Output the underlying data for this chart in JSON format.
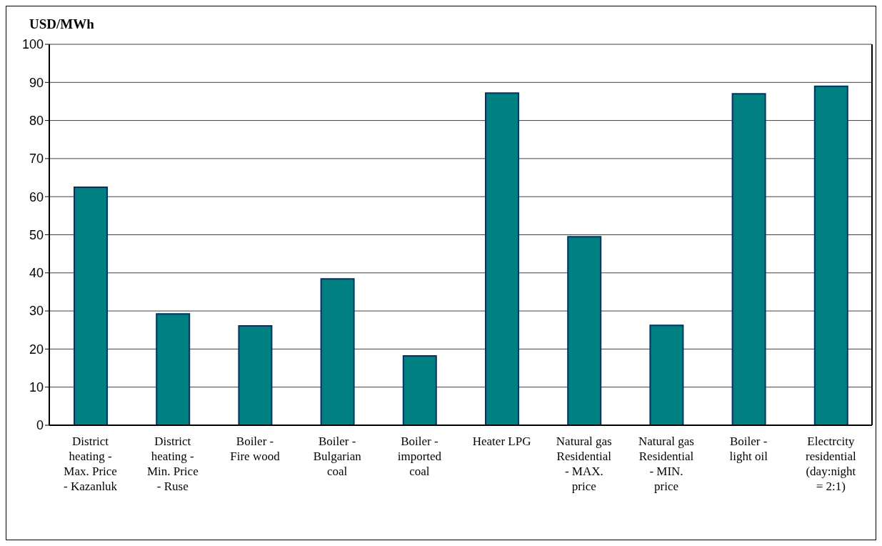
{
  "chart_data": {
    "type": "bar",
    "ylabel": "USD/MWh",
    "categories": [
      "District heating - Max. Price - Kazanluk",
      "District heating - Min. Price - Ruse",
      "Boiler - Fire wood",
      "Boiler - Bulgarian coal",
      "Boiler - imported coal",
      "Heater LPG",
      "Natural gas Residential - MAX. price",
      "Natural gas Residential - MIN. price",
      "Boiler - light oil",
      "Electrcity residential (day:night = 2:1)"
    ],
    "values": [
      62.5,
      29.2,
      26.1,
      38.4,
      18.2,
      87.2,
      49.5,
      26.2,
      87.0,
      89.0
    ],
    "color": "#008080",
    "ylim": [
      0,
      100
    ],
    "yticks": [
      0,
      10,
      20,
      30,
      40,
      50,
      60,
      70,
      80,
      90,
      100
    ],
    "grid": "y",
    "legend": false
  }
}
